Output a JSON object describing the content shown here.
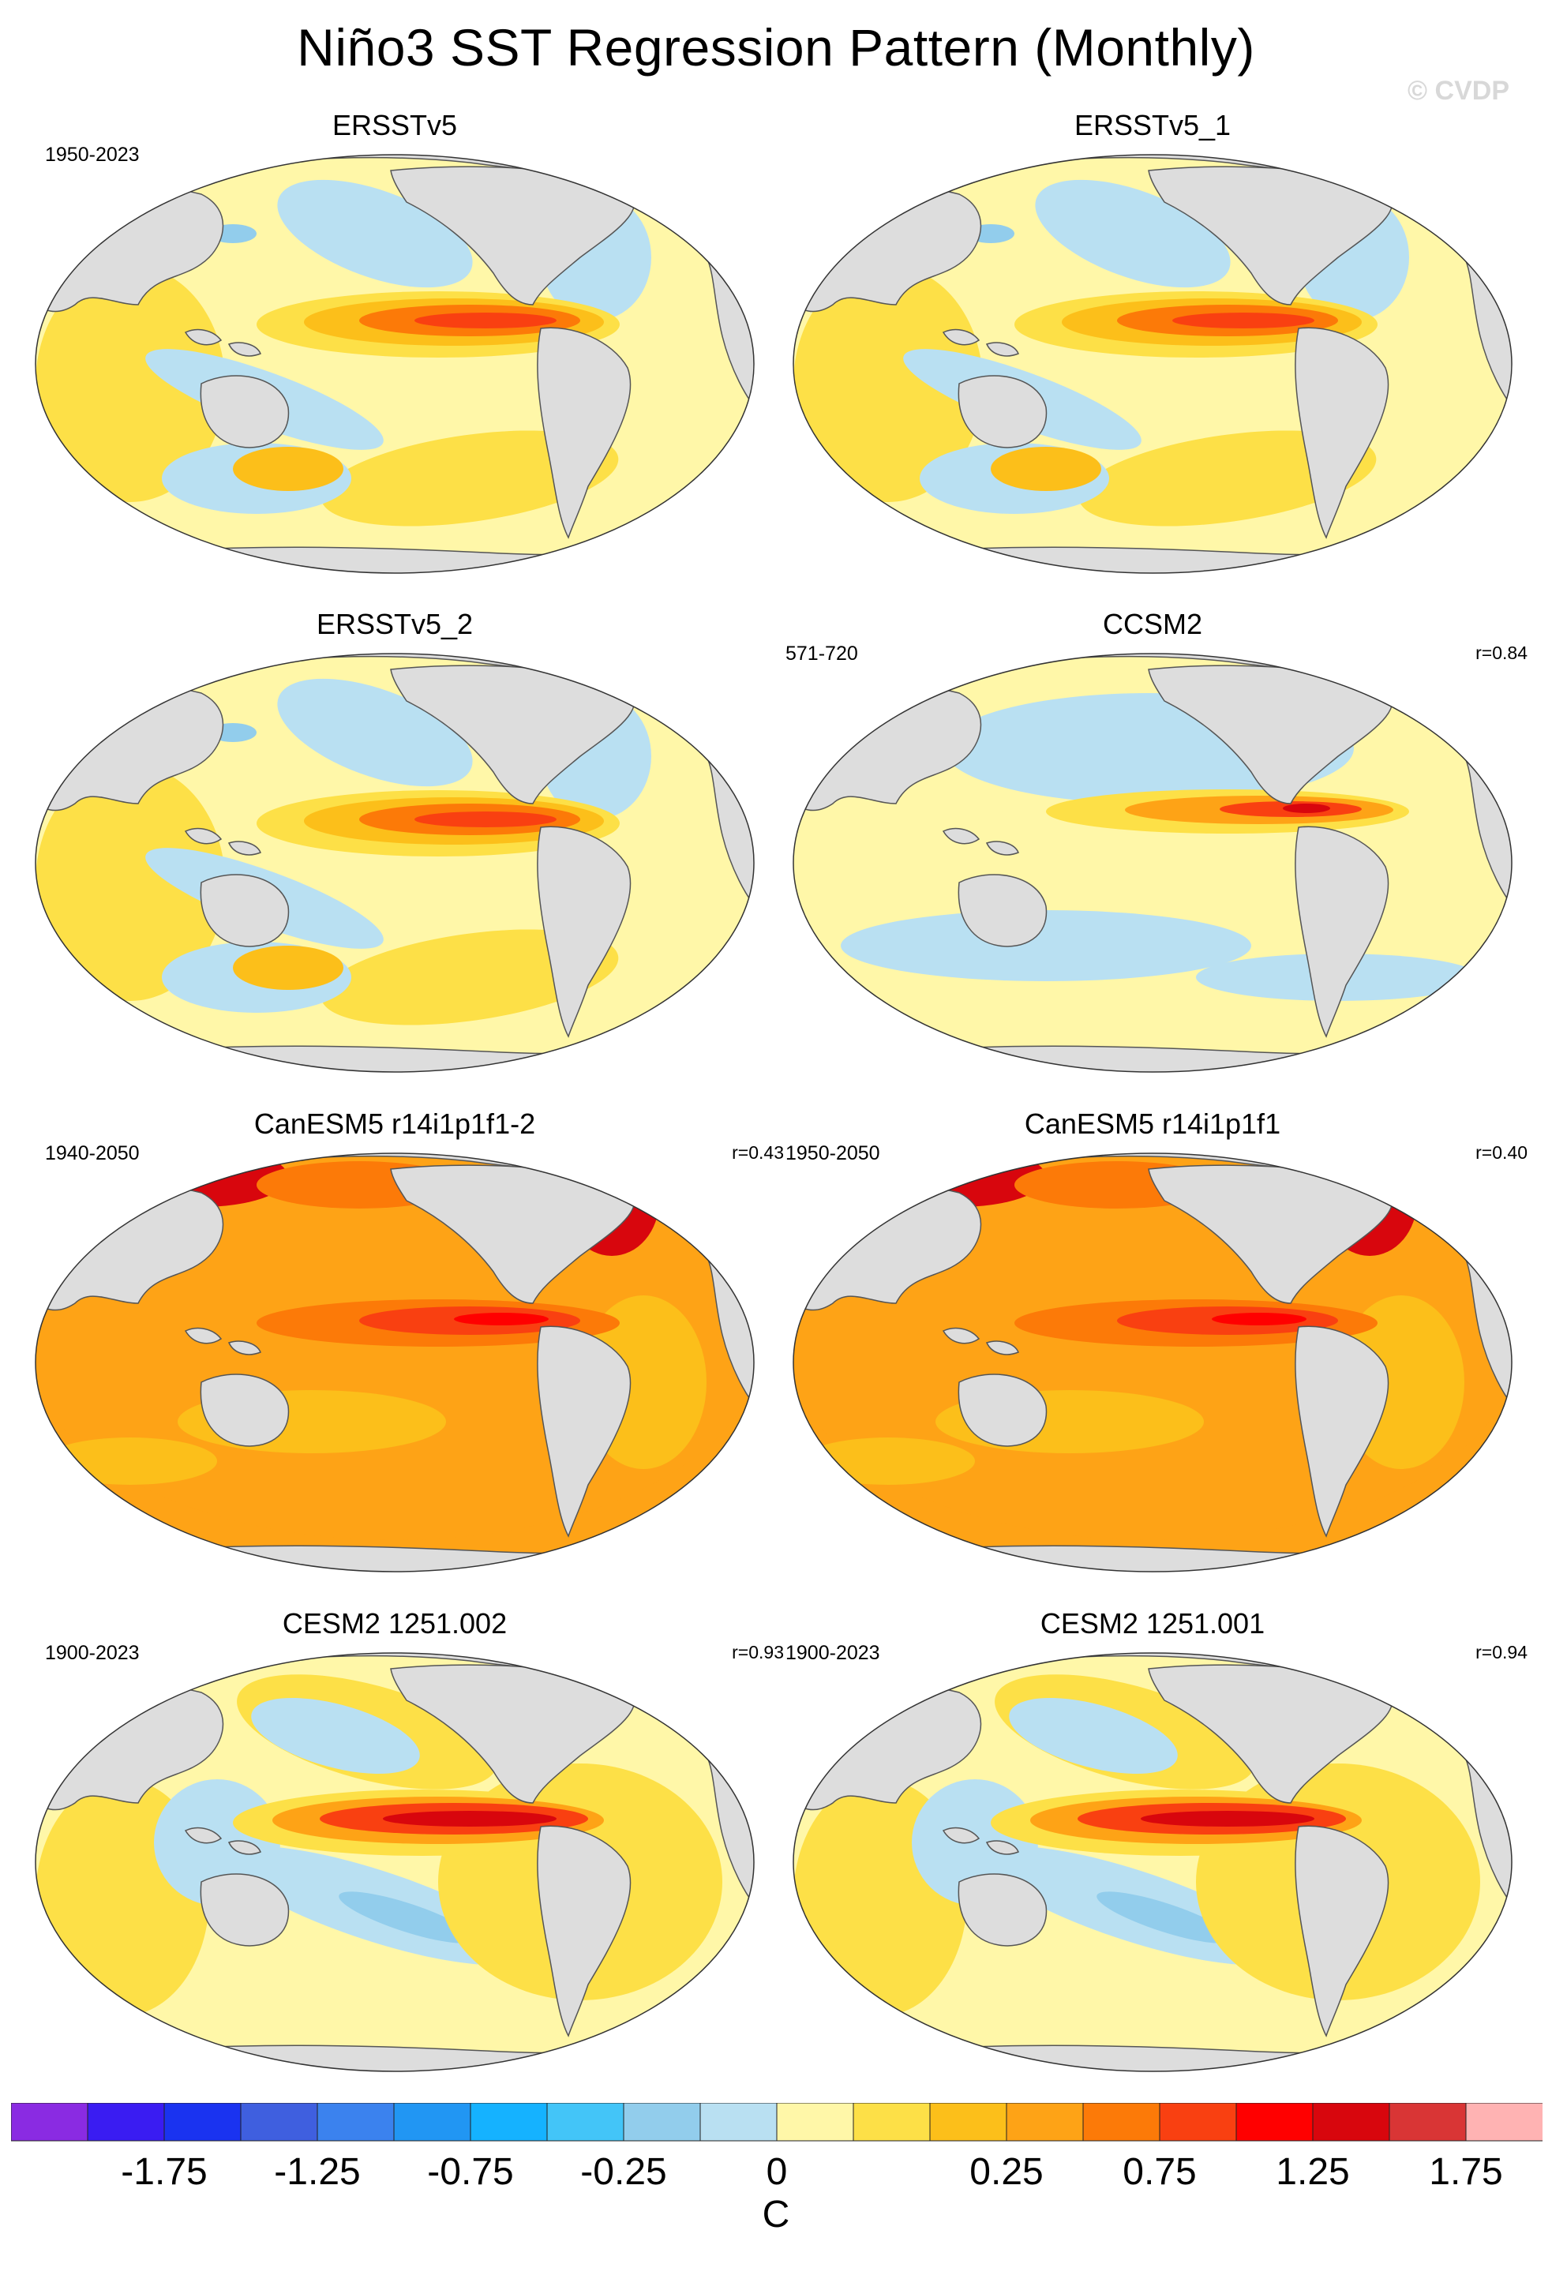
{
  "title": "Niño3 SST Regression Pattern (Monthly)",
  "watermark": "© CVDP",
  "panels": [
    {
      "name": "ERSSTv5",
      "period": "1950-2023",
      "corr": "",
      "pattern": "obs"
    },
    {
      "name": "ERSSTv5_1",
      "period": "",
      "corr": "",
      "pattern": "obs"
    },
    {
      "name": "ERSSTv5_2",
      "period": "",
      "corr": "",
      "pattern": "obs"
    },
    {
      "name": "CCSM2",
      "period": "571-720",
      "corr": "r=0.84",
      "pattern": "ccsm"
    },
    {
      "name": "CanESM5 r14i1p1f1-2",
      "period": "1940-2050",
      "corr": "r=0.43",
      "pattern": "warm"
    },
    {
      "name": "CanESM5 r14i1p1f1",
      "period": "1950-2050",
      "corr": "r=0.40",
      "pattern": "warm"
    },
    {
      "name": "CESM2 1251.002",
      "period": "1900-2023",
      "corr": "r=0.93",
      "pattern": "cesm"
    },
    {
      "name": "CESM2 1251.001",
      "period": "1900-2023",
      "corr": "r=0.94",
      "pattern": "cesm"
    }
  ],
  "colorbar": {
    "unit": "C",
    "tick_labels": [
      "-1.75",
      "-1.25",
      "-0.75",
      "-0.25",
      "0",
      "0.25",
      "0.75",
      "1.25",
      "1.75"
    ],
    "colors": [
      "#8a2be2",
      "#3a1cf2",
      "#1a33f0",
      "#3f5fdf",
      "#3b82ee",
      "#2196f3",
      "#15b2ff",
      "#43c5f8",
      "#92cdec",
      "#b9e0f2",
      "#fff7a8",
      "#fde047",
      "#fcbf1a",
      "#fea316",
      "#fc7a08",
      "#f94011",
      "#ff0000",
      "#d8060d",
      "#d93535",
      "#ffb3b3"
    ]
  },
  "colors": {
    "land": "#dddddd",
    "coast": "#555555"
  }
}
